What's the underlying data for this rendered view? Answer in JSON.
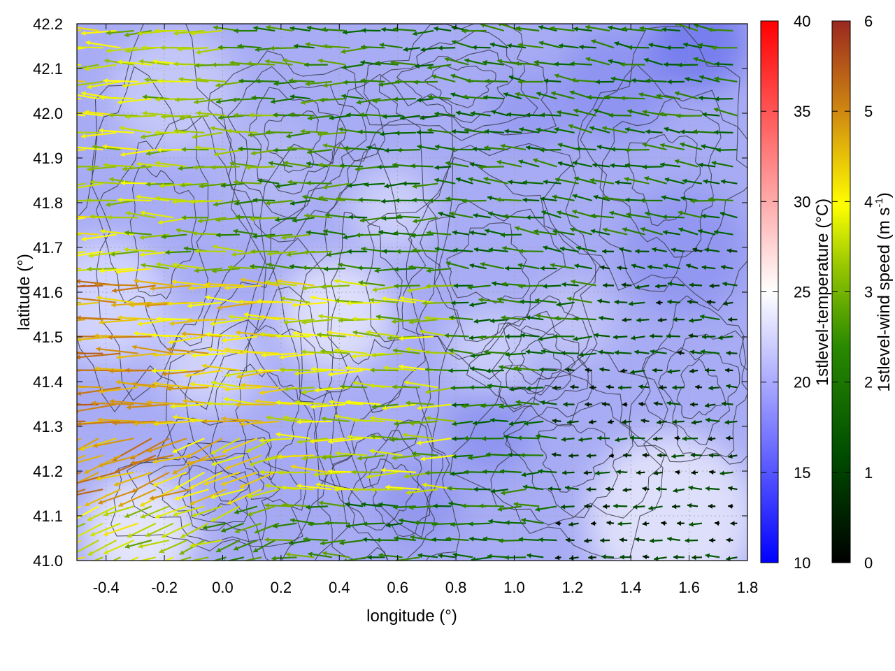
{
  "chart_data": {
    "type": "vector-field-map",
    "title": "",
    "xlabel": "longitude (°)",
    "ylabel": "latitude (°)",
    "xlim": [
      -0.5,
      1.8
    ],
    "ylim": [
      41.0,
      42.2
    ],
    "xticks": [
      "-0.4",
      "-0.2",
      "0.0",
      "0.2",
      "0.4",
      "0.6",
      "0.8",
      "1.0",
      "1.2",
      "1.4",
      "1.6",
      "1.8"
    ],
    "yticks": [
      "41.0",
      "41.1",
      "41.2",
      "41.3",
      "41.4",
      "41.5",
      "41.6",
      "41.7",
      "41.8",
      "41.9",
      "42.0",
      "42.1",
      "42.2"
    ],
    "grid": true,
    "temperature_colorbar": {
      "label": "1stlevel-temperature (°C)",
      "range": [
        10,
        40
      ],
      "ticks": [
        "10",
        "15",
        "20",
        "25",
        "30",
        "35",
        "40"
      ],
      "colors": [
        "#0000ff",
        "#ffffff",
        "#ff0000"
      ]
    },
    "wind_colorbar": {
      "label": "1stlevel-wind speed (m s-1)",
      "range": [
        0,
        6
      ],
      "ticks": [
        "0",
        "1",
        "2",
        "3",
        "4",
        "5",
        "6"
      ],
      "colors": [
        "#000000",
        "#006400",
        "#80b000",
        "#ffff00",
        "#d08000",
        "#8b2020"
      ]
    },
    "field_description": {
      "background": "temperature field mostly 16-22 °C (blue), warmer 22-25 °C inland in west and south-east",
      "contours": "terrain elevation contour lines in dark grey",
      "vectors": "easterly flow (arrows pointing west) across most of domain, strongest 4-6 m/s in western half near 41.2-41.6 N, weak 0-1 m/s in south-east"
    }
  }
}
